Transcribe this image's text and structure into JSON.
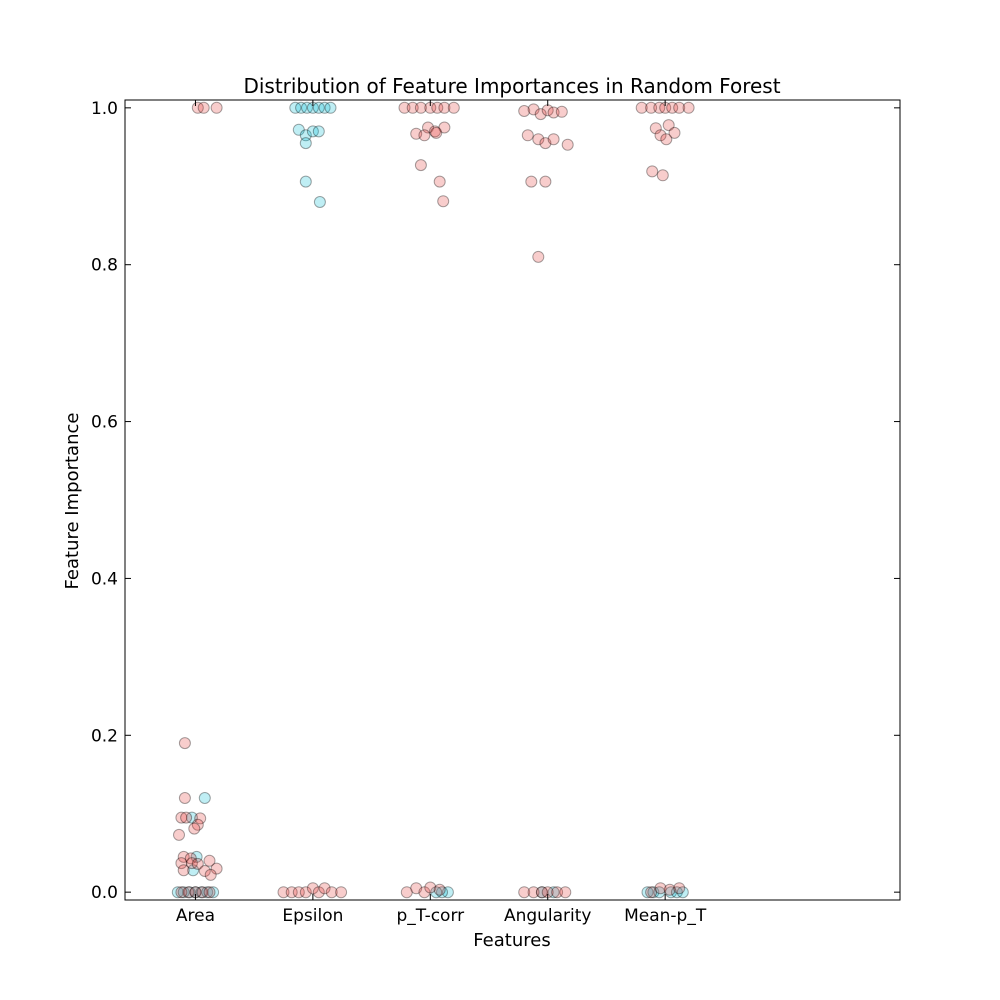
{
  "chart_data": {
    "type": "scatter",
    "title": "Distribution of Feature Importances in Random Forest",
    "xlabel": "Features",
    "ylabel": "Feature Importance",
    "categories": [
      "Area",
      "Epsilon",
      "p_T-corr",
      "Angularity",
      "Mean-p_T"
    ],
    "x_range": [
      -0.6,
      6.0
    ],
    "ylim": [
      -0.01,
      1.01
    ],
    "yticks": [
      "0.0",
      "0.2",
      "0.4",
      "0.6",
      "0.8",
      "1.0"
    ],
    "ytick_values": [
      0.0,
      0.2,
      0.4,
      0.6,
      0.8,
      1.0
    ],
    "grid": false,
    "marker_alpha": 0.25,
    "series": [
      {
        "color": "#00bcd4",
        "points": [
          {
            "c": 0,
            "x": -0.15,
            "y": 0.0
          },
          {
            "c": 0,
            "x": -0.1,
            "y": 0.0
          },
          {
            "c": 0,
            "x": -0.05,
            "y": 0.0
          },
          {
            "c": 0,
            "x": 0.0,
            "y": 0.0
          },
          {
            "c": 0,
            "x": 0.05,
            "y": 0.0
          },
          {
            "c": 0,
            "x": 0.1,
            "y": 0.0
          },
          {
            "c": 0,
            "x": 0.15,
            "y": 0.0
          },
          {
            "c": 0,
            "x": -0.02,
            "y": 0.028
          },
          {
            "c": 0,
            "x": 0.01,
            "y": 0.045
          },
          {
            "c": 0,
            "x": -0.03,
            "y": 0.095
          },
          {
            "c": 0,
            "x": 0.08,
            "y": 0.12
          },
          {
            "c": 1,
            "x": -0.15,
            "y": 1.0
          },
          {
            "c": 1,
            "x": -0.1,
            "y": 1.0
          },
          {
            "c": 1,
            "x": -0.05,
            "y": 1.0
          },
          {
            "c": 1,
            "x": 0.0,
            "y": 1.0
          },
          {
            "c": 1,
            "x": 0.05,
            "y": 1.0
          },
          {
            "c": 1,
            "x": 0.1,
            "y": 1.0
          },
          {
            "c": 1,
            "x": 0.15,
            "y": 1.0
          },
          {
            "c": 1,
            "x": -0.12,
            "y": 0.972
          },
          {
            "c": 1,
            "x": -0.06,
            "y": 0.965
          },
          {
            "c": 1,
            "x": 0.0,
            "y": 0.97
          },
          {
            "c": 1,
            "x": 0.05,
            "y": 0.97
          },
          {
            "c": 1,
            "x": -0.06,
            "y": 0.955
          },
          {
            "c": 1,
            "x": -0.06,
            "y": 0.906
          },
          {
            "c": 1,
            "x": 0.06,
            "y": 0.88
          },
          {
            "c": 2,
            "x": 0.15,
            "y": 0.0
          },
          {
            "c": 2,
            "x": 0.1,
            "y": 0.0
          },
          {
            "c": 2,
            "x": 0.05,
            "y": 0.0
          },
          {
            "c": 3,
            "x": -0.05,
            "y": 0.0
          },
          {
            "c": 3,
            "x": 0.05,
            "y": 0.0
          },
          {
            "c": 4,
            "x": -0.15,
            "y": 0.0
          },
          {
            "c": 4,
            "x": -0.1,
            "y": 0.0
          },
          {
            "c": 4,
            "x": -0.05,
            "y": 0.0
          },
          {
            "c": 4,
            "x": 0.05,
            "y": 0.0
          },
          {
            "c": 4,
            "x": 0.1,
            "y": 0.0
          },
          {
            "c": 4,
            "x": 0.15,
            "y": 0.0
          }
        ]
      },
      {
        "color": "#e53935",
        "points": [
          {
            "c": 0,
            "x": -0.12,
            "y": 0.0
          },
          {
            "c": 0,
            "x": -0.06,
            "y": 0.0
          },
          {
            "c": 0,
            "x": 0.0,
            "y": 0.0
          },
          {
            "c": 0,
            "x": 0.06,
            "y": 0.0
          },
          {
            "c": 0,
            "x": 0.12,
            "y": 0.0
          },
          {
            "c": 0,
            "x": 0.02,
            "y": 1.0
          },
          {
            "c": 0,
            "x": 0.07,
            "y": 1.0
          },
          {
            "c": 0,
            "x": 0.18,
            "y": 1.0
          },
          {
            "c": 0,
            "x": -0.09,
            "y": 0.19
          },
          {
            "c": 0,
            "x": -0.09,
            "y": 0.12
          },
          {
            "c": 0,
            "x": -0.12,
            "y": 0.095
          },
          {
            "c": 0,
            "x": -0.08,
            "y": 0.095
          },
          {
            "c": 0,
            "x": 0.04,
            "y": 0.094
          },
          {
            "c": 0,
            "x": 0.02,
            "y": 0.086
          },
          {
            "c": 0,
            "x": -0.01,
            "y": 0.081
          },
          {
            "c": 0,
            "x": -0.14,
            "y": 0.073
          },
          {
            "c": 0,
            "x": -0.1,
            "y": 0.045
          },
          {
            "c": 0,
            "x": -0.04,
            "y": 0.043
          },
          {
            "c": 0,
            "x": -0.12,
            "y": 0.037
          },
          {
            "c": 0,
            "x": -0.03,
            "y": 0.037
          },
          {
            "c": 0,
            "x": 0.02,
            "y": 0.036
          },
          {
            "c": 0,
            "x": 0.12,
            "y": 0.04
          },
          {
            "c": 0,
            "x": 0.18,
            "y": 0.03
          },
          {
            "c": 0,
            "x": -0.1,
            "y": 0.028
          },
          {
            "c": 0,
            "x": 0.08,
            "y": 0.027
          },
          {
            "c": 0,
            "x": 0.13,
            "y": 0.022
          },
          {
            "c": 1,
            "x": -0.25,
            "y": 0.0
          },
          {
            "c": 1,
            "x": -0.18,
            "y": 0.0
          },
          {
            "c": 1,
            "x": -0.12,
            "y": 0.0
          },
          {
            "c": 1,
            "x": -0.06,
            "y": 0.0
          },
          {
            "c": 1,
            "x": 0.0,
            "y": 0.005
          },
          {
            "c": 1,
            "x": 0.05,
            "y": 0.0
          },
          {
            "c": 1,
            "x": 0.1,
            "y": 0.005
          },
          {
            "c": 1,
            "x": 0.16,
            "y": 0.0
          },
          {
            "c": 1,
            "x": 0.24,
            "y": 0.0
          },
          {
            "c": 2,
            "x": -0.2,
            "y": 0.0
          },
          {
            "c": 2,
            "x": -0.12,
            "y": 0.005
          },
          {
            "c": 2,
            "x": -0.05,
            "y": 0.0
          },
          {
            "c": 2,
            "x": 0.0,
            "y": 0.006
          },
          {
            "c": 2,
            "x": 0.08,
            "y": 0.003
          },
          {
            "c": 2,
            "x": -0.22,
            "y": 1.0
          },
          {
            "c": 2,
            "x": -0.15,
            "y": 1.0
          },
          {
            "c": 2,
            "x": -0.08,
            "y": 1.0
          },
          {
            "c": 2,
            "x": 0.0,
            "y": 1.0
          },
          {
            "c": 2,
            "x": 0.06,
            "y": 1.0
          },
          {
            "c": 2,
            "x": 0.12,
            "y": 1.0
          },
          {
            "c": 2,
            "x": 0.2,
            "y": 1.0
          },
          {
            "c": 2,
            "x": -0.02,
            "y": 0.975
          },
          {
            "c": 2,
            "x": 0.04,
            "y": 0.97
          },
          {
            "c": 2,
            "x": 0.12,
            "y": 0.975
          },
          {
            "c": 2,
            "x": -0.12,
            "y": 0.967
          },
          {
            "c": 2,
            "x": -0.05,
            "y": 0.965
          },
          {
            "c": 2,
            "x": 0.05,
            "y": 0.968
          },
          {
            "c": 2,
            "x": -0.08,
            "y": 0.927
          },
          {
            "c": 2,
            "x": 0.08,
            "y": 0.906
          },
          {
            "c": 2,
            "x": 0.11,
            "y": 0.881
          },
          {
            "c": 3,
            "x": -0.2,
            "y": 0.0
          },
          {
            "c": 3,
            "x": -0.12,
            "y": 0.0
          },
          {
            "c": 3,
            "x": -0.05,
            "y": 0.0
          },
          {
            "c": 3,
            "x": 0.0,
            "y": 0.0
          },
          {
            "c": 3,
            "x": 0.08,
            "y": 0.0
          },
          {
            "c": 3,
            "x": 0.15,
            "y": 0.0
          },
          {
            "c": 3,
            "x": -0.2,
            "y": 0.996
          },
          {
            "c": 3,
            "x": -0.12,
            "y": 0.998
          },
          {
            "c": 3,
            "x": -0.06,
            "y": 0.992
          },
          {
            "c": 3,
            "x": 0.0,
            "y": 0.997
          },
          {
            "c": 3,
            "x": 0.05,
            "y": 0.994
          },
          {
            "c": 3,
            "x": 0.12,
            "y": 0.995
          },
          {
            "c": 3,
            "x": -0.17,
            "y": 0.965
          },
          {
            "c": 3,
            "x": -0.08,
            "y": 0.96
          },
          {
            "c": 3,
            "x": -0.02,
            "y": 0.955
          },
          {
            "c": 3,
            "x": 0.05,
            "y": 0.96
          },
          {
            "c": 3,
            "x": 0.17,
            "y": 0.953
          },
          {
            "c": 3,
            "x": -0.14,
            "y": 0.906
          },
          {
            "c": 3,
            "x": -0.02,
            "y": 0.906
          },
          {
            "c": 3,
            "x": -0.08,
            "y": 0.81
          },
          {
            "c": 4,
            "x": -0.12,
            "y": 0.0
          },
          {
            "c": 4,
            "x": -0.04,
            "y": 0.005
          },
          {
            "c": 4,
            "x": 0.04,
            "y": 0.003
          },
          {
            "c": 4,
            "x": 0.12,
            "y": 0.005
          },
          {
            "c": 4,
            "x": -0.2,
            "y": 1.0
          },
          {
            "c": 4,
            "x": -0.12,
            "y": 1.0
          },
          {
            "c": 4,
            "x": -0.05,
            "y": 1.0
          },
          {
            "c": 4,
            "x": 0.0,
            "y": 1.0
          },
          {
            "c": 4,
            "x": 0.06,
            "y": 1.0
          },
          {
            "c": 4,
            "x": 0.12,
            "y": 1.0
          },
          {
            "c": 4,
            "x": 0.2,
            "y": 1.0
          },
          {
            "c": 4,
            "x": -0.08,
            "y": 0.974
          },
          {
            "c": 4,
            "x": 0.03,
            "y": 0.978
          },
          {
            "c": 4,
            "x": 0.08,
            "y": 0.968
          },
          {
            "c": 4,
            "x": -0.04,
            "y": 0.965
          },
          {
            "c": 4,
            "x": 0.01,
            "y": 0.96
          },
          {
            "c": 4,
            "x": -0.11,
            "y": 0.919
          },
          {
            "c": 4,
            "x": -0.02,
            "y": 0.914
          }
        ]
      }
    ]
  }
}
